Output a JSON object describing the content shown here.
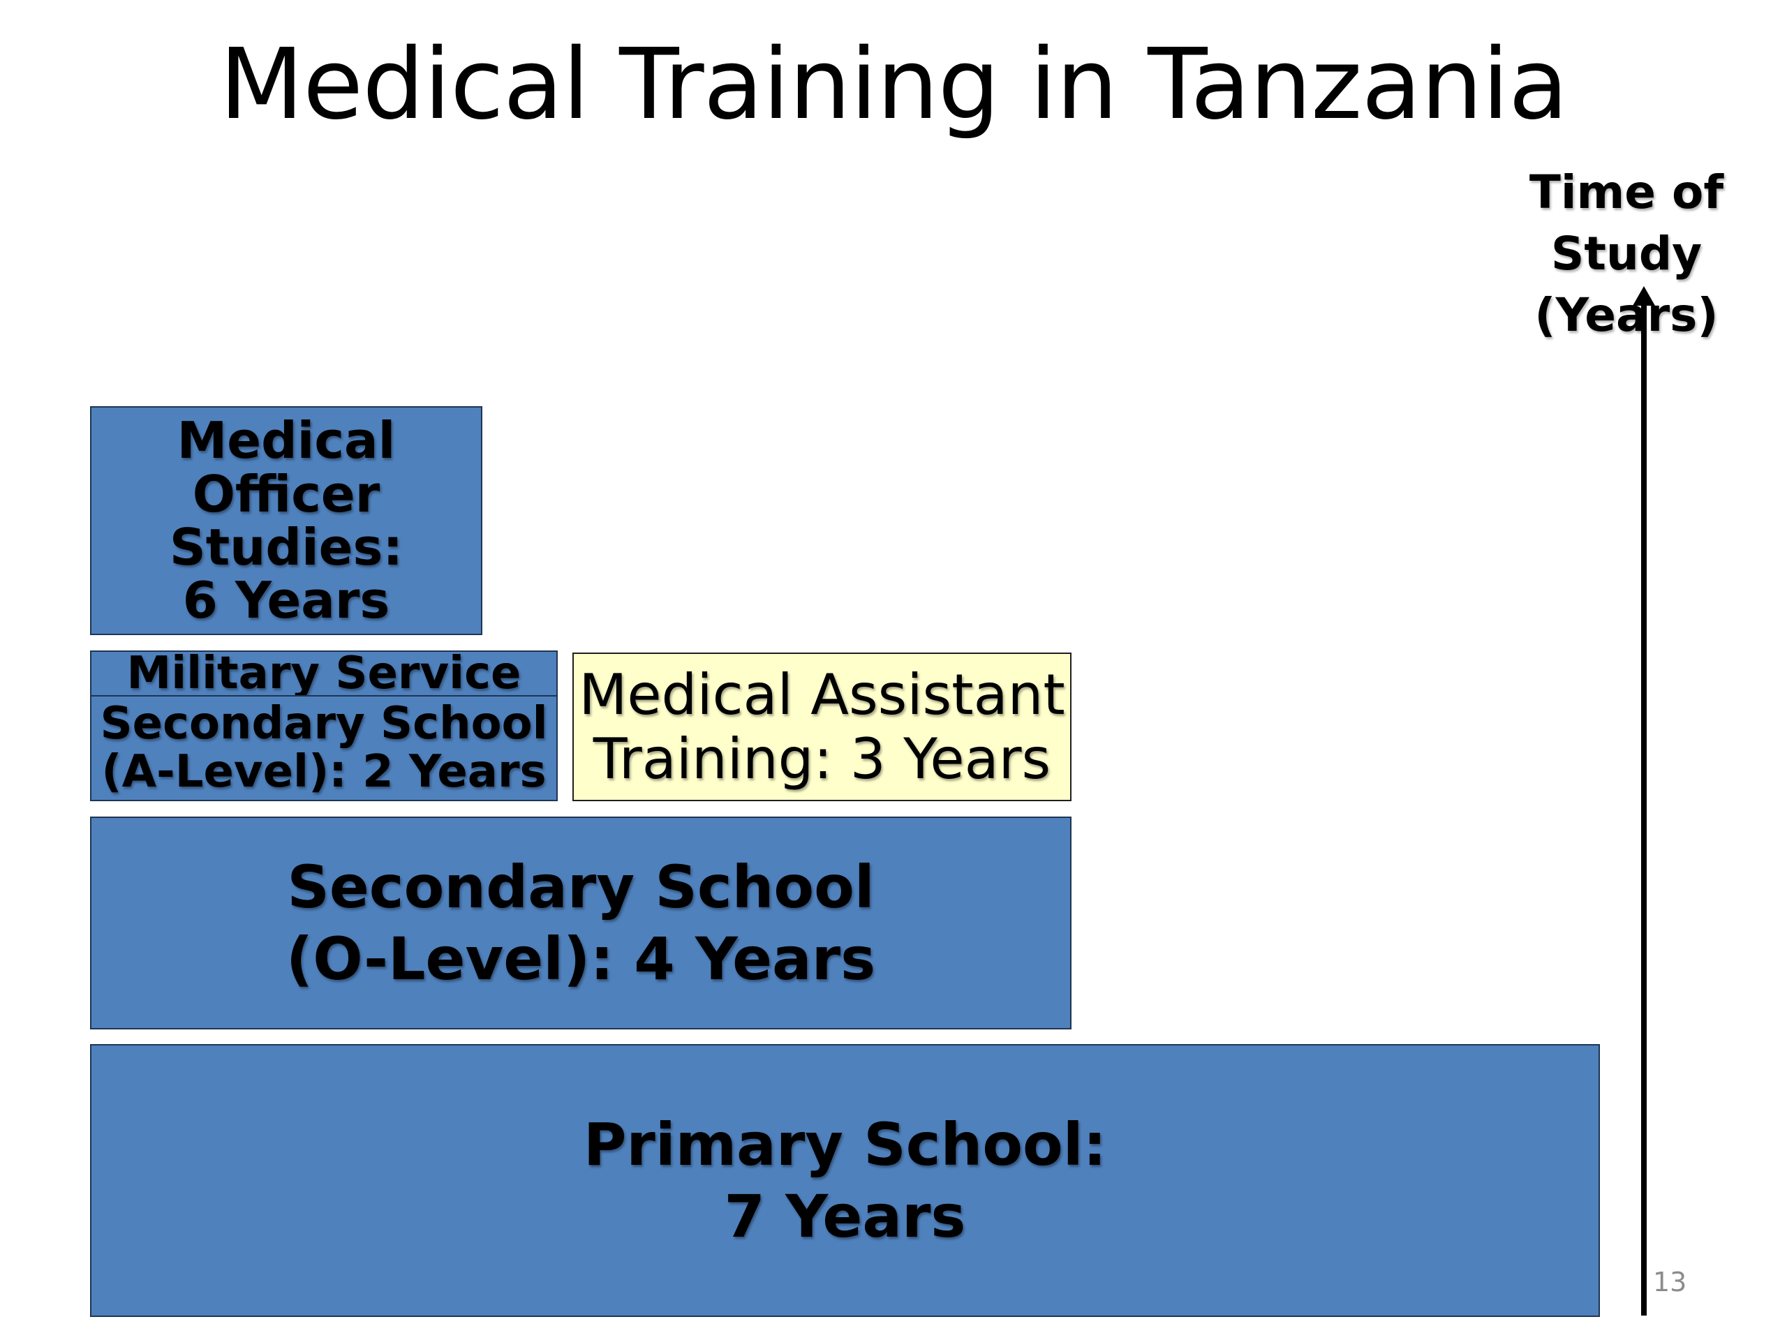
{
  "slide": {
    "title": "Medical Training in Tanzania",
    "page_number": "13"
  },
  "axis": {
    "label_line1": "Time of Study",
    "label_line2": "(Years)"
  },
  "boxes": {
    "medical_officer": [
      "Medical",
      "Officer",
      "Studies:",
      "6 Years"
    ],
    "military_service": "Military Service",
    "a_level": [
      "Secondary School",
      "(A-Level): 2 Years"
    ],
    "medical_assistant": [
      "Medical Assistant",
      "Training: 3 Years"
    ],
    "o_level": [
      "Secondary School",
      "(O-Level): 4 Years"
    ],
    "primary": [
      "Primary School:",
      "7 Years"
    ]
  },
  "colors": {
    "blue_box": "#4f81bd",
    "yellow_box": "#ffffcc"
  }
}
